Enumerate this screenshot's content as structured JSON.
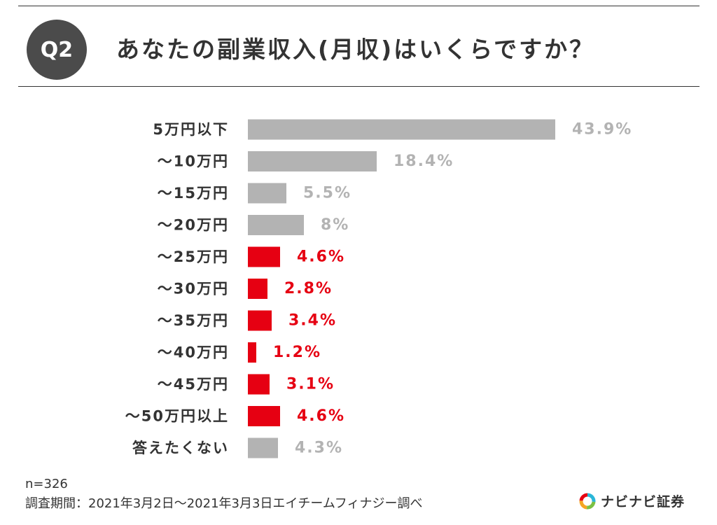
{
  "header": {
    "badge": "Q2",
    "question": "あなたの副業収入(月収)はいくらですか？"
  },
  "chart_data": {
    "type": "bar",
    "orientation": "horizontal",
    "categories": [
      "5万円以下",
      "～10万円",
      "～15万円",
      "～20万円",
      "～25万円",
      "～30万円",
      "～35万円",
      "～40万円",
      "～45万円",
      "～50万円以上",
      "答えたくない"
    ],
    "values": [
      43.9,
      18.4,
      5.5,
      8,
      4.6,
      2.8,
      3.4,
      1.2,
      3.1,
      4.6,
      4.3
    ],
    "value_labels": [
      "43.9%",
      "18.4%",
      "5.5%",
      "8%",
      "4.6%",
      "2.8%",
      "3.4%",
      "1.2%",
      "3.1%",
      "4.6%",
      "4.3%"
    ],
    "highlighted": [
      false,
      false,
      false,
      false,
      true,
      true,
      true,
      true,
      true,
      true,
      false
    ],
    "colors": {
      "default": "#b3b3b3",
      "highlight": "#e60012",
      "label_default": "#b3b3b3",
      "label_highlight": "#e60012"
    },
    "unit": "%",
    "grid": false,
    "legend": "none"
  },
  "footer": {
    "sample": "n=326",
    "note": "調査期間：2021年3月2日～2021年3月3日エイチームフィナジー調べ"
  },
  "brand": {
    "name": "ナビナビ証券",
    "logo_icon": "ring-logo-icon",
    "logo_colors": [
      "#e60012",
      "#f5a623",
      "#29b6d8",
      "#7bc043"
    ]
  }
}
